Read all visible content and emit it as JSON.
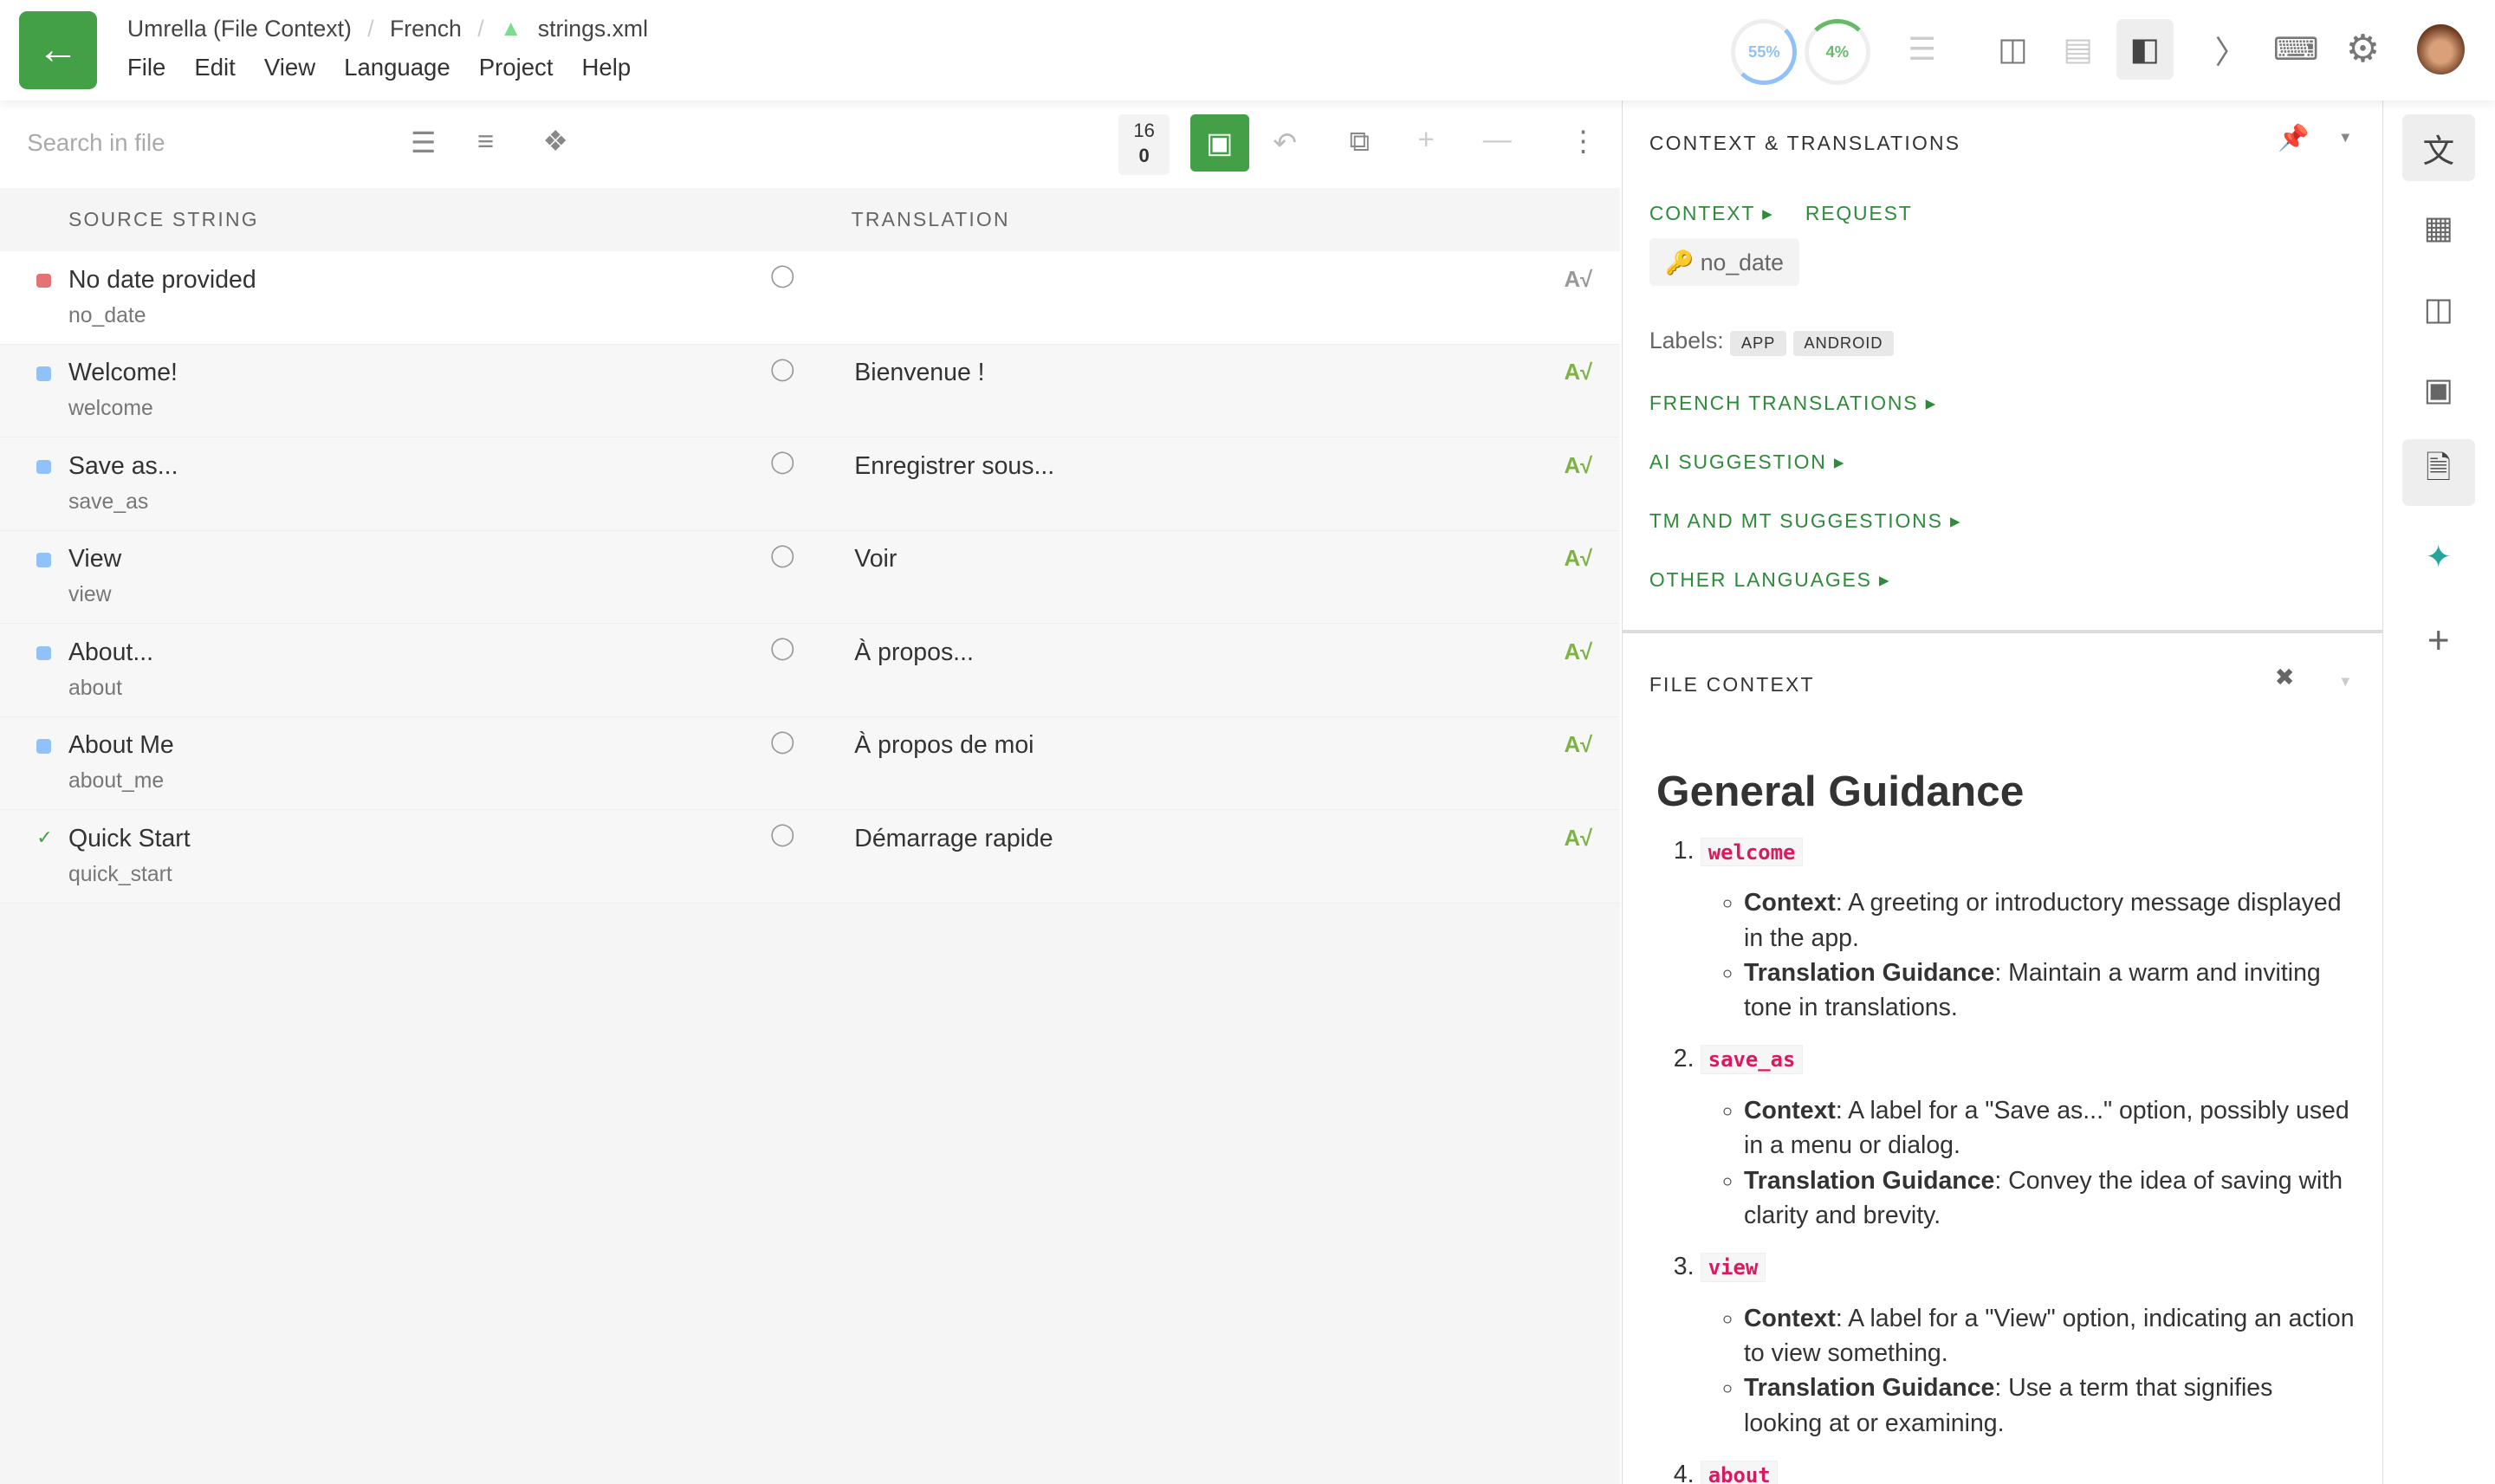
{
  "header": {
    "back_icon": "arrow-left-icon",
    "breadcrumb": [
      "Umrella (File Context)",
      "French",
      "strings.xml"
    ],
    "menu": [
      "File",
      "Edit",
      "View",
      "Language",
      "Project",
      "Help"
    ],
    "progress_translated": "55%",
    "progress_approved": "4%",
    "accent": "#43a047"
  },
  "toolbar": {
    "search_placeholder": "Search in file",
    "count_top": "16",
    "count_bottom": "0"
  },
  "table": {
    "col_source": "SOURCE STRING",
    "col_translation": "TRANSLATION",
    "rows": [
      {
        "source": "No date provided",
        "key": "no_date",
        "translation": "",
        "status": "untranslated"
      },
      {
        "source": "Welcome!",
        "key": "welcome",
        "translation": "Bienvenue !",
        "status": "translated"
      },
      {
        "source": "Save as...",
        "key": "save_as",
        "translation": "Enregistrer sous...",
        "status": "translated"
      },
      {
        "source": "View",
        "key": "view",
        "translation": "Voir",
        "status": "translated"
      },
      {
        "source": "About...",
        "key": "about",
        "translation": "À propos...",
        "status": "translated"
      },
      {
        "source": "About Me",
        "key": "about_me",
        "translation": "À propos de moi",
        "status": "translated"
      },
      {
        "source": "Quick Start",
        "key": "quick_start",
        "translation": "Démarrage rapide",
        "status": "approved"
      }
    ]
  },
  "context_panel": {
    "title": "CONTEXT & TRANSLATIONS",
    "tab_context": "CONTEXT",
    "tab_request": "REQUEST",
    "key": "no_date",
    "labels_label": "Labels:",
    "labels": [
      "APP",
      "ANDROID"
    ],
    "sections": [
      "FRENCH TRANSLATIONS",
      "AI SUGGESTION",
      "TM AND MT SUGGESTIONS",
      "OTHER LANGUAGES"
    ]
  },
  "file_context": {
    "title": "FILE CONTEXT",
    "heading": "General Guidance",
    "items": [
      {
        "key": "welcome",
        "context": "A greeting or introductory message displayed in the app.",
        "guidance": "Maintain a warm and inviting tone in translations."
      },
      {
        "key": "save_as",
        "context": "A label for a \"Save as...\" option, possibly used in a menu or dialog.",
        "guidance": "Convey the idea of saving with clarity and brevity."
      },
      {
        "key": "view",
        "context": "A label for a \"View\" option, indicating an action to view something.",
        "guidance": "Use a term that signifies looking at or examining."
      },
      {
        "key": "about"
      }
    ],
    "context_label": "Context",
    "guidance_label": "Translation Guidance"
  }
}
